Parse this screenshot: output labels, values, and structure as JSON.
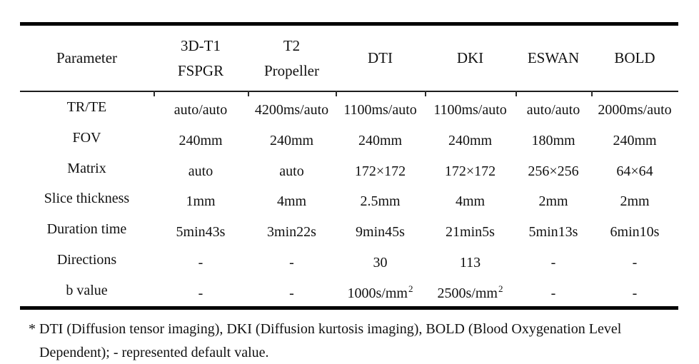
{
  "table": {
    "columns": [
      {
        "key": "parameter",
        "label_lines": [
          "Parameter"
        ]
      },
      {
        "key": "3d-t1-fspgr",
        "label_lines": [
          "3D-T1",
          "FSPGR"
        ]
      },
      {
        "key": "t2-propeller",
        "label_lines": [
          "T2",
          "Propeller"
        ]
      },
      {
        "key": "dti",
        "label_lines": [
          "DTI"
        ]
      },
      {
        "key": "dki",
        "label_lines": [
          "DKI"
        ]
      },
      {
        "key": "eswan",
        "label_lines": [
          "ESWAN"
        ]
      },
      {
        "key": "bold",
        "label_lines": [
          "BOLD"
        ]
      }
    ],
    "rows": [
      {
        "label": "TR/TE",
        "values": [
          "auto/auto",
          "4200ms/auto",
          "1100ms/auto",
          "1100ms/auto",
          "auto/auto",
          "2000ms/auto"
        ]
      },
      {
        "label": "FOV",
        "values": [
          "240mm",
          "240mm",
          "240mm",
          "240mm",
          "180mm",
          "240mm"
        ]
      },
      {
        "label": "Matrix",
        "values": [
          "auto",
          "auto",
          "172×172",
          "172×172",
          "256×256",
          "64×64"
        ]
      },
      {
        "label": "Slice thickness",
        "values": [
          "1mm",
          "4mm",
          "2.5mm",
          "4mm",
          "2mm",
          "2mm"
        ]
      },
      {
        "label": "Duration time",
        "values": [
          "5min43s",
          "3min22s",
          "9min45s",
          "21min5s",
          "5min13s",
          "6min10s"
        ]
      },
      {
        "label": "Directions",
        "values": [
          "-",
          "-",
          "30",
          "113",
          "-",
          "-"
        ]
      },
      {
        "label": "b value",
        "values": [
          "-",
          "-",
          "1000s/mm²",
          "2500s/mm²",
          "-",
          "-"
        ]
      }
    ]
  },
  "footnote": {
    "line1": "* DTI (Diffusion tensor imaging), DKI (Diffusion kurtosis imaging), BOLD (Blood Oxygenation Level",
    "line2": "Dependent); - represented default value."
  },
  "colors": {
    "text": "#111111",
    "rule": "#000000",
    "background": "#ffffff"
  }
}
